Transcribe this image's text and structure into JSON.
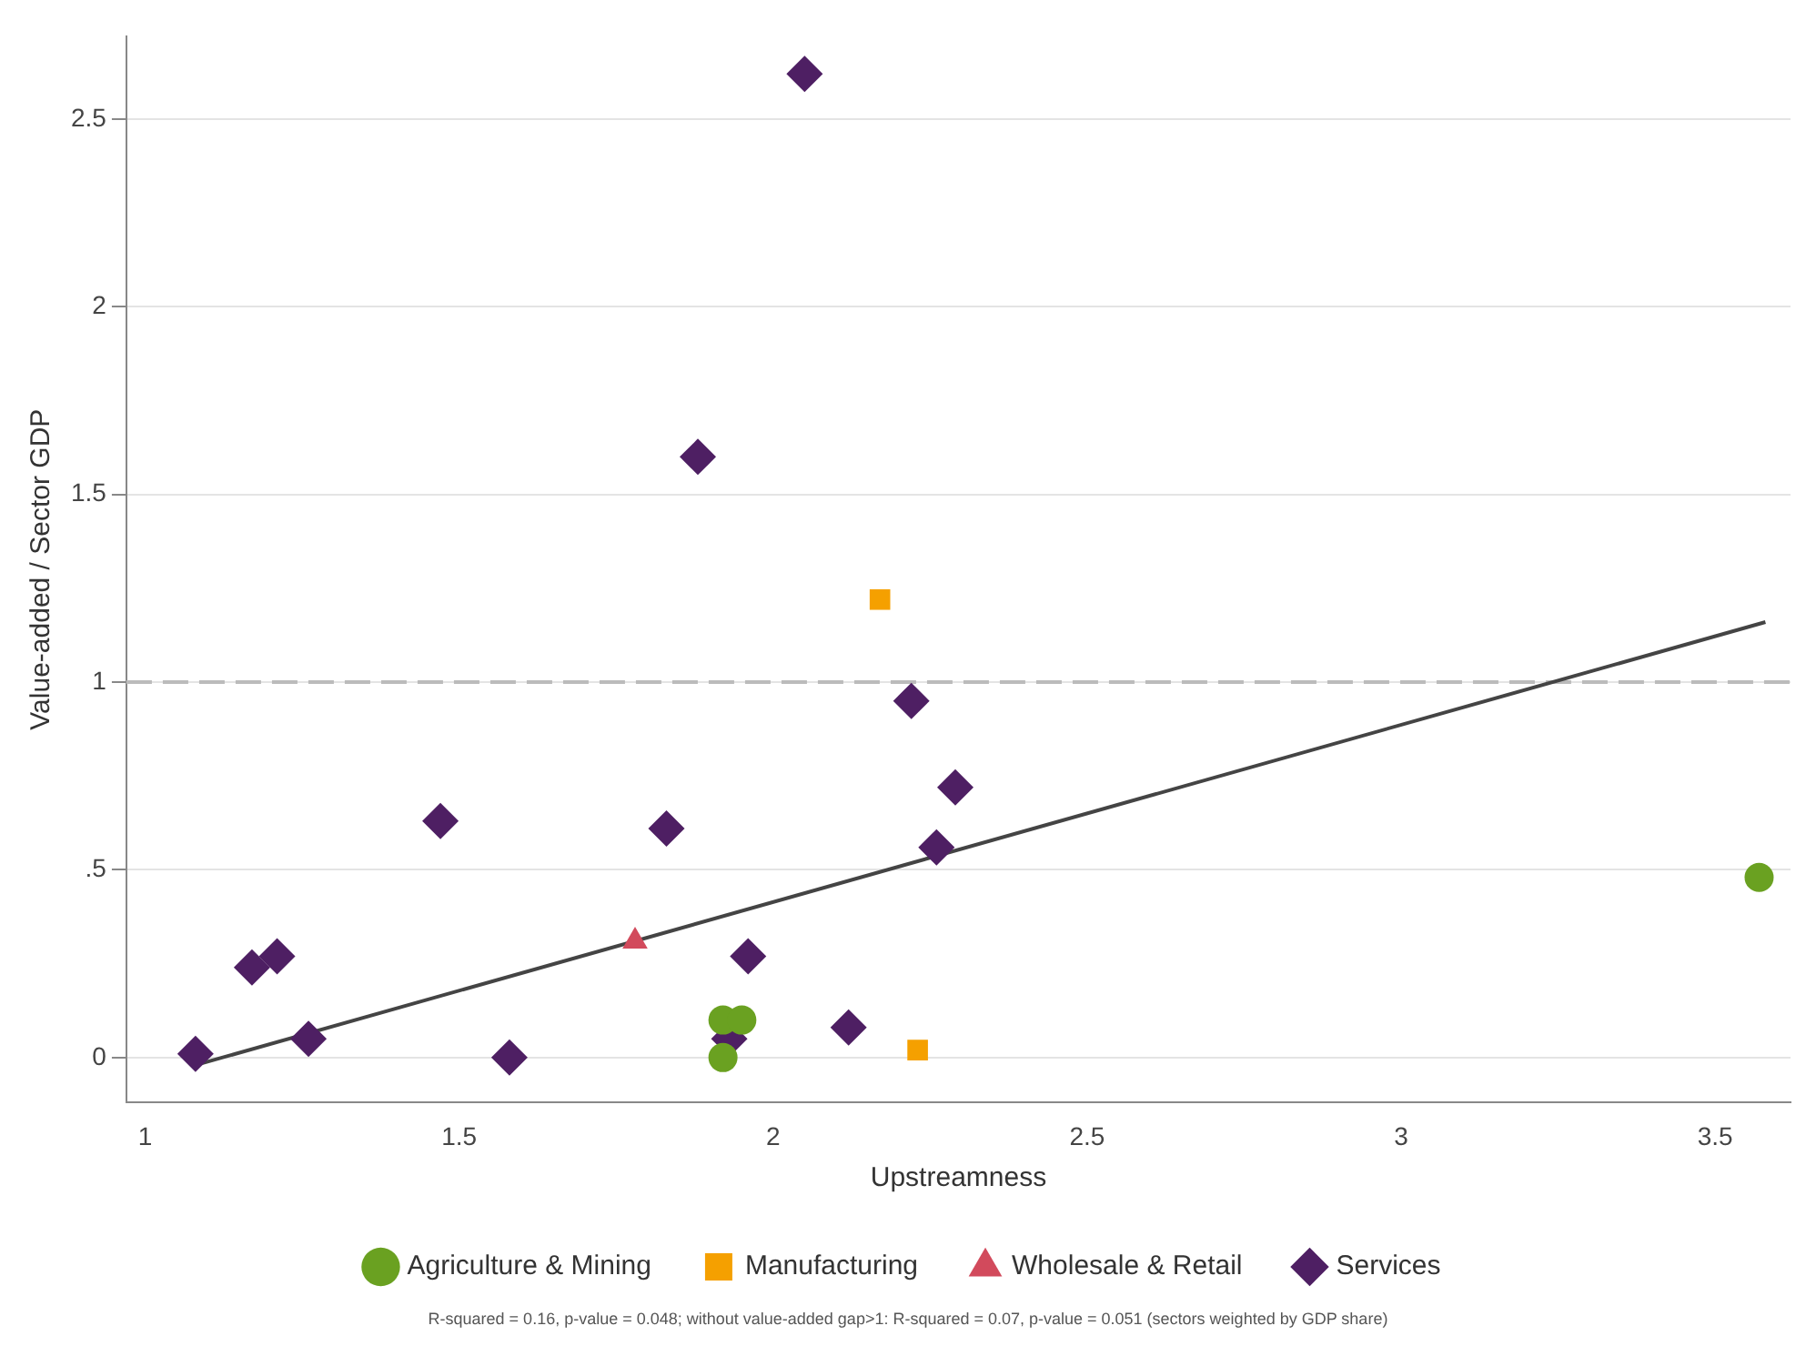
{
  "chart_data": {
    "type": "scatter",
    "xlabel": "Upstreamness",
    "ylabel": "Value-added / Sector GDP",
    "xlim": [
      0.97,
      3.62
    ],
    "xticks": [
      1,
      1.5,
      2,
      2.5,
      3,
      3.5
    ],
    "ylim": [
      -0.12,
      2.72
    ],
    "yticks": [
      {
        "value": 0,
        "label": "0"
      },
      {
        "value": 0.5,
        "label": ".5"
      },
      {
        "value": 1,
        "label": "1"
      },
      {
        "value": 1.5,
        "label": "1.5"
      },
      {
        "value": 2,
        "label": "2"
      },
      {
        "value": 2.5,
        "label": "2.5"
      }
    ],
    "grid": "y",
    "legend": "bottom",
    "series": [
      {
        "name": "Agriculture & Mining",
        "color": "#6aa121",
        "marker": "circle",
        "x": [
          1.92,
          1.95,
          1.92,
          3.57
        ],
        "values": [
          0.1,
          0.1,
          0.0,
          0.48
        ]
      },
      {
        "name": "Manufacturing",
        "color": "#f5a000",
        "marker": "square",
        "x": [
          2.17,
          2.23
        ],
        "values": [
          1.22,
          0.02
        ]
      },
      {
        "name": "Wholesale & Retail",
        "color": "#d24a5c",
        "marker": "triangle",
        "x": [
          1.78
        ],
        "values": [
          0.31
        ]
      },
      {
        "name": "Services",
        "color": "#4e1f63",
        "marker": "diamond",
        "x": [
          1.08,
          1.17,
          1.21,
          1.26,
          1.47,
          1.58,
          1.83,
          1.88,
          1.93,
          1.96,
          2.05,
          2.12,
          2.22,
          2.26,
          2.29
        ],
        "values": [
          0.01,
          0.24,
          0.27,
          0.05,
          0.63,
          0.0,
          0.61,
          1.6,
          0.05,
          0.27,
          2.62,
          0.08,
          0.95,
          0.56,
          0.72
        ]
      },
      {
        "type": "line",
        "color": "#444444",
        "marker": "none",
        "x": [
          1.08,
          3.58
        ],
        "values": [
          -0.02,
          1.16
        ]
      }
    ],
    "ref_lines": [
      {
        "axis": "y",
        "value": 1,
        "color": "#bbbbbb",
        "line_style": "dashed"
      }
    ],
    "annotations": [
      "R-squared =  0.16, p-value = 0.048; without value-added gap>1: R-squared =  0.07, p-value = 0.051 (sectors weighted by GDP share)"
    ]
  }
}
